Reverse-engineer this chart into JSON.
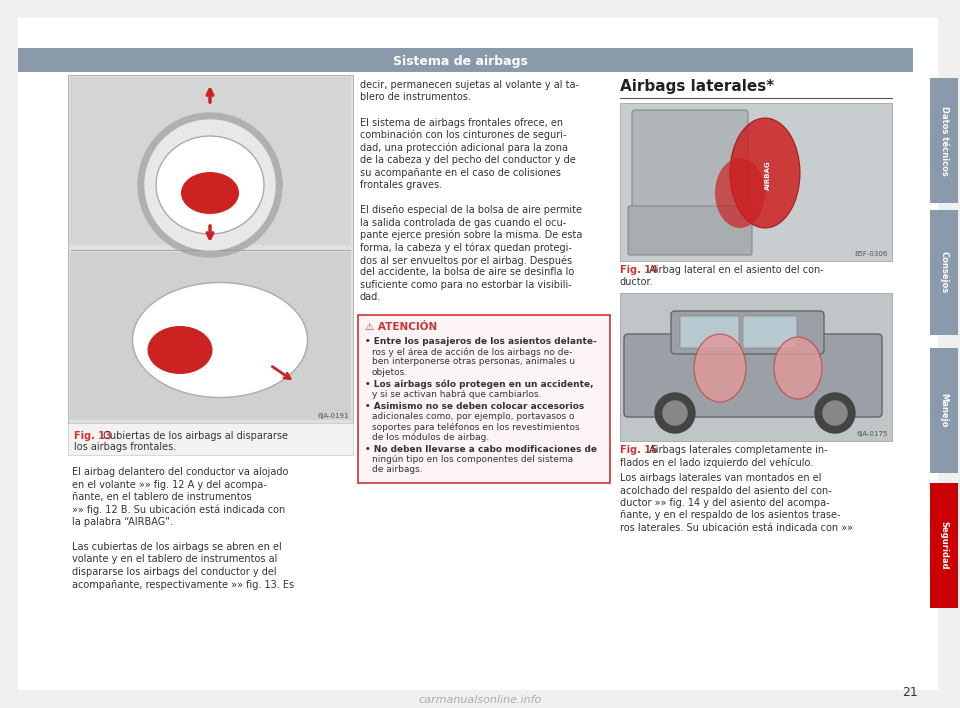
{
  "page_bg": "#f0f0f0",
  "content_bg": "#ffffff",
  "header_bg": "#8a9aaa",
  "header_text": "Sistema de airbags",
  "header_text_color": "#ffffff",
  "sidebar_colors": [
    "#8a9aaa",
    "#8a9aaa",
    "#8a9aaa",
    "#cc0000"
  ],
  "sidebar_labels": [
    "Datos técnicos",
    "Consejos",
    "Manejo",
    "Seguridad"
  ],
  "page_number": "21",
  "fig13_caption_bold": "Fig. 13",
  "fig13_caption_rest": " Cubiertas de los airbags al dispararse",
  "fig13_caption_line2": "los airbags frontales.",
  "main_text_col1": [
    "El airbag delantero del conductor va alojado",
    "en el volante »» fig. 12 A y del acompa-",
    "ñante, en el tablero de instrumentos",
    "»» fig. 12 B. Su ubicación está indicada con",
    "la palabra “AIRBAG”.",
    "",
    "Las cubiertas de los airbags se abren en el",
    "volante y en el tablero de instrumentos al",
    "dispararse los airbags del conductor y del",
    "acompañante, respectivamente »» fig. 13. Es"
  ],
  "main_text_col2_top": [
    "decir, permanecen sujetas al volante y al ta-",
    "blero de instrumentos.",
    "",
    "El sistema de airbags frontales ofrece, en",
    "combinación con los cinturones de seguri-",
    "dad, una protección adicional para la zona",
    "de la cabeza y del pecho del conductor y de",
    "su acompañante en el caso de colisiones",
    "frontales graves.",
    "",
    "El diseño especial de la bolsa de aire permite",
    "la salida controlada de gas cuando el ocu-",
    "pante ejerce presión sobre la misma. De esta",
    "forma, la cabeza y el tórax quedan protegi-",
    "dos al ser envueltos por el airbag. Después",
    "del accidente, la bolsa de aire se desinfla lo",
    "suficiente como para no estorbar la visibili-",
    "dad."
  ],
  "attencion_header": "⚠ ATENCIÓN",
  "attencion_bullets": [
    [
      "• Entre los pasajeros de los asientos delante-",
      "ros y el área de acción de los airbags no de-",
      "ben interponerse otras personas, animales u",
      "objetos."
    ],
    [
      "• Los airbags sólo protegen en un accidente,",
      "y si se activan habrá que cambiarlos."
    ],
    [
      "• Asimismo no se deben colocar accesorios",
      "adicionales como, por ejemplo, portavasos o",
      "soportes para teléfonos en los revestimientos",
      "de los módulos de airbag."
    ],
    [
      "• No deben llevarse a cabo modificaciones de",
      "ningún tipo en los componentes del sistema",
      "de airbags."
    ]
  ],
  "airbags_laterales_title": "Airbags laterales*",
  "fig14_caption_bold": "Fig. 14",
  "fig14_caption_rest": " Airbag lateral en el asiento del con-",
  "fig14_caption_line2": "ductor.",
  "fig15_caption_bold": "Fig. 15",
  "fig15_caption_rest": " Airbags laterales completamente in-",
  "fig15_caption_line2": "flados en el lado izquierdo del vehículo.",
  "col3_bottom_text": [
    "Los airbags laterales van montados en el",
    "acolchado del respaldo del asiento del con-",
    "ductor »» fig. 14 y del asiento del acompa-",
    "ñante, y en el respaldo de los asientos trase-",
    "ros laterales. Su ubicación está indicada con »»"
  ],
  "watermark": "carmanualsonline.info",
  "img13_code": "6JA-0191",
  "img15_code": "6JA-0175",
  "img14_code": "85F-0306"
}
